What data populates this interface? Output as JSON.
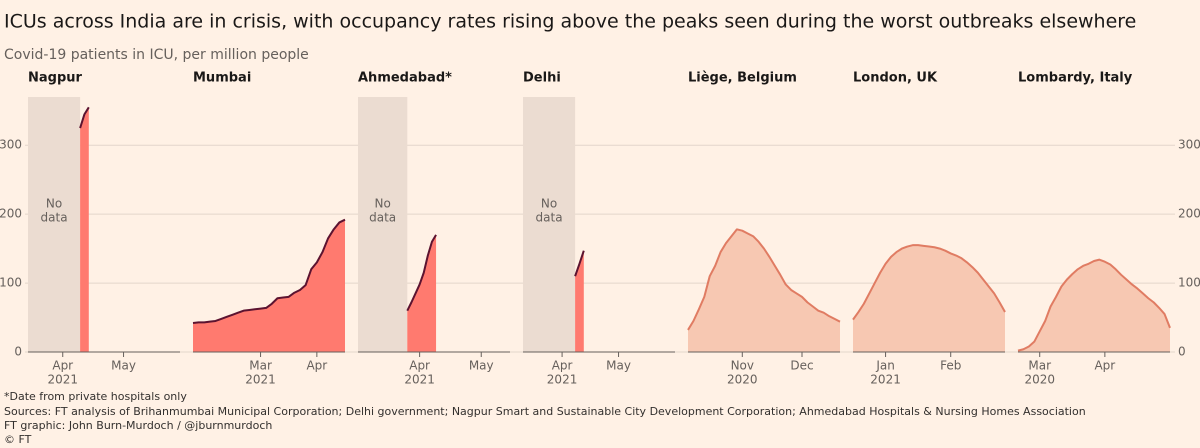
{
  "title": "ICUs across India are in crisis, with occupancy rates rising above the peaks seen during the worst outbreaks elsewhere",
  "subtitle": "Covid-19 patients in ICU, per million people",
  "ylim": [
    0,
    370
  ],
  "yticks": [
    0,
    100,
    200,
    300
  ],
  "grid": true,
  "notes": [
    "*Date from private hospitals only",
    "Sources: FT analysis of Brihanmumbai Municipal Corporation; Delhi government; Nagpur Smart and Sustainable City Development Corporation; Ahmedabad Hospitals & Nursing Homes Association",
    "FT graphic: John Burn-Murdoch / @jburnmurdoch",
    "© FT"
  ],
  "chart_data": [
    {
      "type": "area",
      "title": "Nagpur",
      "color": "#ff7a6f",
      "line_color": "#5c1330",
      "no_data_label": [
        "No",
        "data"
      ],
      "categories": [
        null,
        null,
        null,
        null,
        null,
        null,
        null,
        null,
        "Apr",
        null,
        null,
        null,
        null,
        null,
        null,
        null,
        null,
        null,
        null,
        null,
        null,
        null,
        "May",
        null,
        null,
        null,
        null,
        null,
        null,
        null,
        null,
        null,
        null,
        null,
        null,
        null
      ],
      "years": [
        null,
        null,
        null,
        null,
        null,
        null,
        null,
        null,
        "2021",
        null,
        null,
        null,
        null,
        null,
        null,
        null,
        null,
        null,
        null,
        null,
        null,
        null,
        null,
        null,
        null,
        null,
        null,
        null,
        null,
        null,
        null,
        null,
        null,
        null,
        null,
        null
      ],
      "values": [
        null,
        null,
        null,
        null,
        null,
        null,
        null,
        null,
        null,
        null,
        null,
        null,
        325,
        345,
        355,
        null,
        null,
        null,
        null,
        null,
        null,
        null,
        null,
        null,
        null,
        null,
        null,
        null,
        null,
        null,
        null,
        null,
        null,
        null,
        null,
        null
      ]
    },
    {
      "type": "area",
      "title": "Mumbai",
      "color": "#ff7a6f",
      "line_color": "#5c1330",
      "categories": [
        null,
        null,
        null,
        null,
        null,
        null,
        null,
        null,
        null,
        null,
        null,
        null,
        "Mar",
        null,
        null,
        null,
        null,
        null,
        null,
        null,
        null,
        null,
        "Apr",
        null,
        null,
        null,
        null,
        null
      ],
      "years": [
        null,
        null,
        null,
        null,
        null,
        null,
        null,
        null,
        null,
        null,
        null,
        null,
        "2021",
        null,
        null,
        null,
        null,
        null,
        null,
        null,
        null,
        null,
        null,
        null,
        null,
        null,
        null,
        null
      ],
      "values": [
        42,
        43,
        43,
        44,
        45,
        48,
        51,
        54,
        57,
        60,
        61,
        62,
        63,
        64,
        70,
        78,
        79,
        80,
        86,
        90,
        97,
        120,
        130,
        145,
        165,
        178,
        188,
        192
      ]
    },
    {
      "type": "area",
      "title": "Ahmedabad*",
      "color": "#ff7a6f",
      "line_color": "#5c1330",
      "no_data_label": [
        "No",
        "data"
      ],
      "categories": [
        null,
        null,
        null,
        null,
        null,
        null,
        null,
        null,
        null,
        null,
        null,
        null,
        null,
        null,
        null,
        "Apr",
        null,
        null,
        null,
        null,
        null,
        null,
        null,
        null,
        null,
        null,
        null,
        null,
        null,
        null,
        "May",
        null,
        null,
        null,
        null,
        null,
        null,
        null
      ],
      "years": [
        null,
        null,
        null,
        null,
        null,
        null,
        null,
        null,
        null,
        null,
        null,
        null,
        null,
        null,
        null,
        "2021",
        null,
        null,
        null,
        null,
        null,
        null,
        null,
        null,
        null,
        null,
        null,
        null,
        null,
        null,
        null,
        null,
        null,
        null,
        null,
        null,
        null,
        null
      ],
      "values": [
        null,
        null,
        null,
        null,
        null,
        null,
        null,
        null,
        null,
        null,
        null,
        null,
        60,
        72,
        85,
        98,
        115,
        140,
        160,
        170,
        null,
        null,
        null,
        null,
        null,
        null,
        null,
        null,
        null,
        null,
        null,
        null,
        null,
        null,
        null,
        null,
        null,
        null
      ]
    },
    {
      "type": "area",
      "title": "Delhi",
      "color": "#ff7a6f",
      "line_color": "#5c1330",
      "no_data_label": [
        "No",
        "data"
      ],
      "categories": [
        null,
        null,
        null,
        null,
        null,
        null,
        null,
        null,
        null,
        "Apr",
        null,
        null,
        null,
        null,
        null,
        null,
        null,
        null,
        null,
        null,
        null,
        null,
        "May",
        null,
        null,
        null,
        null,
        null,
        null,
        null,
        null,
        null,
        null,
        null,
        null,
        null
      ],
      "years": [
        null,
        null,
        null,
        null,
        null,
        null,
        null,
        null,
        null,
        "2021",
        null,
        null,
        null,
        null,
        null,
        null,
        null,
        null,
        null,
        null,
        null,
        null,
        null,
        null,
        null,
        null,
        null,
        null,
        null,
        null,
        null,
        null,
        null,
        null,
        null,
        null
      ],
      "values": [
        null,
        null,
        null,
        null,
        null,
        null,
        null,
        null,
        null,
        null,
        null,
        null,
        110,
        128,
        147,
        null,
        null,
        null,
        null,
        null,
        null,
        null,
        null,
        null,
        null,
        null,
        null,
        null,
        null,
        null,
        null,
        null,
        null,
        null,
        null,
        null
      ]
    },
    {
      "type": "area",
      "title": "Liège, Belgium",
      "color": "#f7c8b2",
      "line_color": "#e07c63",
      "categories": [
        null,
        null,
        null,
        null,
        null,
        null,
        null,
        null,
        null,
        null,
        "Nov",
        null,
        null,
        null,
        null,
        null,
        null,
        null,
        null,
        null,
        null,
        "Dec",
        null,
        null,
        null,
        null,
        null,
        null,
        null
      ],
      "years": [
        null,
        null,
        null,
        null,
        null,
        null,
        null,
        null,
        null,
        null,
        "2020",
        null,
        null,
        null,
        null,
        null,
        null,
        null,
        null,
        null,
        null,
        null,
        null,
        null,
        null,
        null,
        null,
        null,
        null
      ],
      "values": [
        32,
        45,
        62,
        80,
        110,
        125,
        145,
        158,
        168,
        178,
        176,
        172,
        168,
        160,
        150,
        138,
        125,
        112,
        98,
        90,
        85,
        80,
        72,
        66,
        60,
        57,
        52,
        48,
        44
      ]
    },
    {
      "type": "area",
      "title": "London, UK",
      "color": "#f7c8b2",
      "line_color": "#e07c63",
      "categories": [
        null,
        null,
        null,
        null,
        null,
        null,
        "Jan",
        null,
        null,
        null,
        null,
        null,
        null,
        null,
        null,
        null,
        null,
        null,
        "Feb",
        null,
        null,
        null,
        null,
        null,
        null,
        null,
        null,
        null,
        null
      ],
      "years": [
        null,
        null,
        null,
        null,
        null,
        null,
        "2021",
        null,
        null,
        null,
        null,
        null,
        null,
        null,
        null,
        null,
        null,
        null,
        null,
        null,
        null,
        null,
        null,
        null,
        null,
        null,
        null,
        null,
        null
      ],
      "values": [
        47,
        58,
        70,
        85,
        100,
        115,
        128,
        138,
        145,
        150,
        153,
        155,
        155,
        154,
        153,
        152,
        150,
        147,
        143,
        140,
        136,
        130,
        123,
        115,
        105,
        95,
        85,
        72,
        58
      ]
    },
    {
      "type": "area",
      "title": "Lombardy, Italy",
      "color": "#f7c8b2",
      "line_color": "#e07c63",
      "categories": [
        null,
        null,
        null,
        null,
        "Mar",
        null,
        null,
        null,
        null,
        null,
        null,
        null,
        null,
        null,
        null,
        null,
        "Apr",
        null,
        null,
        null,
        null,
        null,
        null,
        null,
        null,
        null,
        null,
        null,
        null
      ],
      "years": [
        null,
        null,
        null,
        null,
        "2020",
        null,
        null,
        null,
        null,
        null,
        null,
        null,
        null,
        null,
        null,
        null,
        null,
        null,
        null,
        null,
        null,
        null,
        null,
        null,
        null,
        null,
        null,
        null,
        null
      ],
      "values": [
        2,
        4,
        8,
        15,
        30,
        45,
        66,
        80,
        95,
        105,
        113,
        120,
        125,
        128,
        132,
        134,
        131,
        127,
        120,
        112,
        105,
        98,
        92,
        85,
        78,
        72,
        64,
        55,
        35
      ]
    }
  ]
}
